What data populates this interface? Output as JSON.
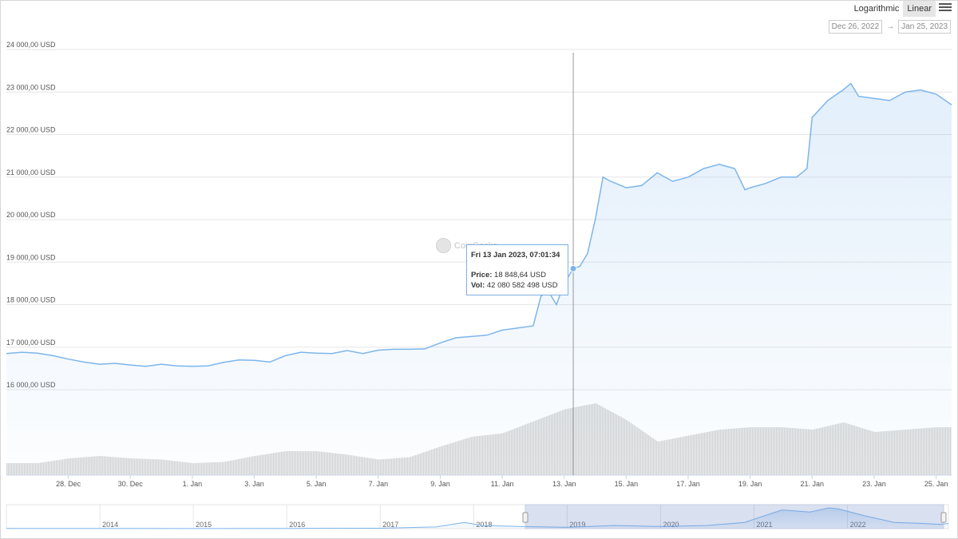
{
  "controls": {
    "logarithmic_label": "Logarithmic",
    "linear_label": "Linear",
    "active_scale": "linear",
    "range_start": "Dec 26, 2022",
    "range_arrow": "→",
    "range_end": "Jan 25, 2023"
  },
  "watermark": "CoinGecko",
  "colors": {
    "line": "#7cb5ec",
    "volume": "#d3d3d3",
    "crosshair": "#999999",
    "grid": "#e6e6e6"
  },
  "tooltip": {
    "header": "Fri 13 Jan 2023, 07:01:34",
    "price_label": "Price:",
    "price_value": "18 848,64 USD",
    "vol_label": "Vol:",
    "vol_value": "42 080 582 498 USD"
  },
  "chart_data": [
    {
      "type": "line",
      "title": "",
      "xlabel": "",
      "ylabel": "",
      "ylim": [
        16000,
        24000
      ],
      "y_ticks": [
        "16 000,00 USD",
        "17 000,00 USD",
        "18 000,00 USD",
        "19 000,00 USD",
        "20 000,00 USD",
        "21 000,00 USD",
        "22 000,00 USD",
        "23 000,00 USD",
        "24 000,00 USD"
      ],
      "y_tick_values": [
        16000,
        17000,
        18000,
        19000,
        20000,
        21000,
        22000,
        23000,
        24000
      ],
      "x_ticks": [
        "28. Dec",
        "30. Dec",
        "1. Jan",
        "3. Jan",
        "5. Jan",
        "7. Jan",
        "9. Jan",
        "11. Jan",
        "13. Jan",
        "15. Jan",
        "17. Jan",
        "19. Jan",
        "21. Jan",
        "23. Jan",
        "25. Jan"
      ],
      "x_tick_values": [
        "2022-12-28",
        "2022-12-30",
        "2023-01-01",
        "2023-01-03",
        "2023-01-05",
        "2023-01-07",
        "2023-01-09",
        "2023-01-11",
        "2023-01-13",
        "2023-01-15",
        "2023-01-17",
        "2023-01-19",
        "2023-01-21",
        "2023-01-23",
        "2023-01-25"
      ],
      "xlim": [
        "2022-12-26 00:00",
        "2023-01-25 12:00"
      ],
      "grid": true,
      "fill": "gradient-area",
      "x": [
        "2022-12-26 00:00",
        "2022-12-26 12:00",
        "2022-12-27 00:00",
        "2022-12-27 12:00",
        "2022-12-28 00:00",
        "2022-12-28 12:00",
        "2022-12-29 00:00",
        "2022-12-29 12:00",
        "2022-12-30 00:00",
        "2022-12-30 12:00",
        "2022-12-31 00:00",
        "2022-12-31 12:00",
        "2023-01-01 00:00",
        "2023-01-01 12:00",
        "2023-01-02 00:00",
        "2023-01-02 12:00",
        "2023-01-03 00:00",
        "2023-01-03 12:00",
        "2023-01-04 00:00",
        "2023-01-04 12:00",
        "2023-01-05 00:00",
        "2023-01-05 12:00",
        "2023-01-06 00:00",
        "2023-01-06 12:00",
        "2023-01-07 00:00",
        "2023-01-07 12:00",
        "2023-01-08 00:00",
        "2023-01-08 12:00",
        "2023-01-09 00:00",
        "2023-01-09 12:00",
        "2023-01-10 00:00",
        "2023-01-10 12:00",
        "2023-01-11 00:00",
        "2023-01-11 12:00",
        "2023-01-12 00:00",
        "2023-01-12 06:00",
        "2023-01-12 12:00",
        "2023-01-12 18:00",
        "2023-01-13 00:00",
        "2023-01-13 07:00",
        "2023-01-13 12:00",
        "2023-01-13 18:00",
        "2023-01-14 00:00",
        "2023-01-14 06:00",
        "2023-01-14 12:00",
        "2023-01-15 00:00",
        "2023-01-15 12:00",
        "2023-01-16 00:00",
        "2023-01-16 12:00",
        "2023-01-17 00:00",
        "2023-01-17 12:00",
        "2023-01-18 00:00",
        "2023-01-18 12:00",
        "2023-01-18 20:00",
        "2023-01-19 00:00",
        "2023-01-19 12:00",
        "2023-01-20 00:00",
        "2023-01-20 12:00",
        "2023-01-20 20:00",
        "2023-01-21 00:00",
        "2023-01-21 12:00",
        "2023-01-22 00:00",
        "2023-01-22 06:00",
        "2023-01-22 12:00",
        "2023-01-23 00:00",
        "2023-01-23 12:00",
        "2023-01-24 00:00",
        "2023-01-24 12:00",
        "2023-01-25 00:00",
        "2023-01-25 12:00"
      ],
      "series": [
        {
          "values": [
            16850,
            16880,
            16860,
            16800,
            16720,
            16650,
            16600,
            16620,
            16580,
            16550,
            16600,
            16560,
            16550,
            16560,
            16640,
            16700,
            16690,
            16650,
            16800,
            16880,
            16860,
            16850,
            16920,
            16850,
            16930,
            16950,
            16950,
            16960,
            17100,
            17220,
            17250,
            17280,
            17400,
            17450,
            17500,
            18200,
            18300,
            18000,
            18500,
            18848,
            18900,
            19200,
            20000,
            21000,
            20900,
            20750,
            20800,
            21100,
            20900,
            21000,
            21200,
            21300,
            21200,
            20700,
            20750,
            20850,
            21000,
            21000,
            21200,
            22400,
            22800,
            23050,
            23200,
            22900,
            22850,
            22800,
            23000,
            23050,
            22950,
            22700
          ]
        }
      ]
    },
    {
      "type": "bar",
      "name_hint": "volume",
      "x": [
        "2022-12-26",
        "2022-12-27",
        "2022-12-28",
        "2022-12-29",
        "2022-12-30",
        "2022-12-31",
        "2023-01-01",
        "2023-01-02",
        "2023-01-03",
        "2023-01-04",
        "2023-01-05",
        "2023-01-06",
        "2023-01-07",
        "2023-01-08",
        "2023-01-09",
        "2023-01-10",
        "2023-01-11",
        "2023-01-12",
        "2023-01-13",
        "2023-01-14",
        "2023-01-15",
        "2023-01-16",
        "2023-01-17",
        "2023-01-18",
        "2023-01-19",
        "2023-01-20",
        "2023-01-21",
        "2023-01-22",
        "2023-01-23",
        "2023-01-24",
        "2023-01-25"
      ],
      "values": [
        10,
        10,
        14,
        16,
        14,
        13,
        10,
        11,
        16,
        20,
        20,
        17,
        13,
        15,
        24,
        32,
        35,
        45,
        55,
        60,
        46,
        28,
        33,
        38,
        40,
        40,
        38,
        44,
        36,
        38,
        40
      ]
    },
    {
      "type": "area",
      "name_hint": "navigator",
      "x_ticks": [
        "2014",
        "2015",
        "2016",
        "2017",
        "2018",
        "2019",
        "2020",
        "2021",
        "2022"
      ],
      "x": [
        2013.0,
        2014.0,
        2015.0,
        2016.0,
        2017.0,
        2017.6,
        2017.9,
        2018.1,
        2018.5,
        2019.0,
        2019.5,
        2020.0,
        2020.5,
        2020.9,
        2021.1,
        2021.3,
        2021.6,
        2021.8,
        2021.9,
        2022.2,
        2022.5,
        2022.8,
        2023.0,
        2023.08
      ],
      "values": [
        0.01,
        0.01,
        0.005,
        0.01,
        0.02,
        0.08,
        0.3,
        0.15,
        0.1,
        0.06,
        0.15,
        0.1,
        0.15,
        0.3,
        0.6,
        0.9,
        0.8,
        1.0,
        0.95,
        0.6,
        0.3,
        0.25,
        0.2,
        0.25
      ],
      "selected_range": [
        "2022-12-26",
        "2023-01-25"
      ]
    }
  ]
}
